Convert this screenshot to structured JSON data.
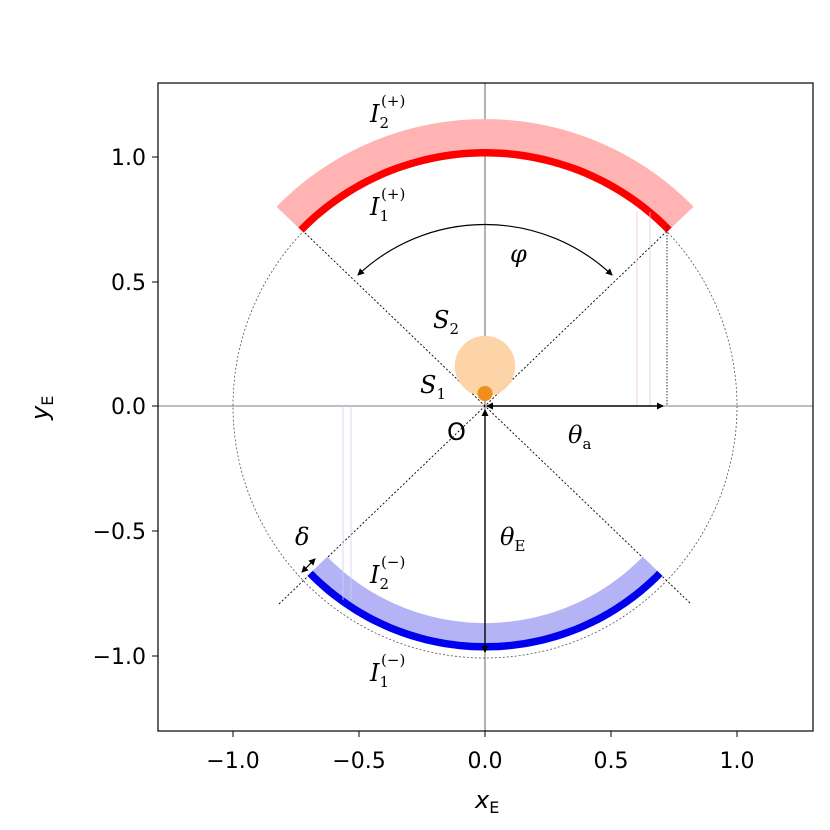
{
  "chart_data": {
    "type": "diagram",
    "xlabel": "x",
    "xlabel_sub": "E",
    "ylabel": "y",
    "ylabel_sub": "E",
    "xlim": [
      -1.3,
      1.3
    ],
    "ylim": [
      -1.3,
      1.3
    ],
    "xticks": [
      "−1.0",
      "−0.5",
      "0.0",
      "0.5",
      "1.0"
    ],
    "yticks": [
      "1.0",
      "0.5",
      "0.0",
      "−0.5",
      "−1.0"
    ],
    "einstein_radius": 1.0,
    "angular_aperture_deg": 90,
    "sources": [
      {
        "name": "S1",
        "x": 0.0,
        "y": 0.05,
        "radius": 0.03,
        "color": "#f28e1c"
      },
      {
        "name": "S2",
        "x": 0.0,
        "y": 0.16,
        "radius": 0.12,
        "color": "#fdd3a8"
      }
    ],
    "images": [
      {
        "name": "I1(+)",
        "r_in": 1.0,
        "r_out": 1.03,
        "color": "#ff0000"
      },
      {
        "name": "I2(+)",
        "r_in": 1.03,
        "r_out": 1.15,
        "color": "#ffb3b3"
      },
      {
        "name": "I1(−)",
        "r_in": 0.95,
        "r_out": 0.98,
        "color": "#0000ee"
      },
      {
        "name": "I2(−)",
        "r_in": 0.87,
        "r_out": 0.95,
        "color": "#b3b3f5"
      }
    ]
  },
  "labels": {
    "I2_plus": "I",
    "I2_plus_sub": "2",
    "I2_plus_sup": "(+)",
    "I1_plus": "I",
    "I1_plus_sub": "1",
    "I1_plus_sup": "(+)",
    "I2_minus": "I",
    "I2_minus_sub": "2",
    "I2_minus_sup": "(−)",
    "I1_minus": "I",
    "I1_minus_sub": "1",
    "I1_minus_sup": "(−)",
    "S2": "S",
    "S2_sub": "2",
    "S1": "S",
    "S1_sub": "1",
    "phi": "φ",
    "theta_a": "θ",
    "theta_a_sub": "a",
    "theta_E": "θ",
    "theta_E_sub": "E",
    "delta": "δ",
    "origin": "O"
  }
}
